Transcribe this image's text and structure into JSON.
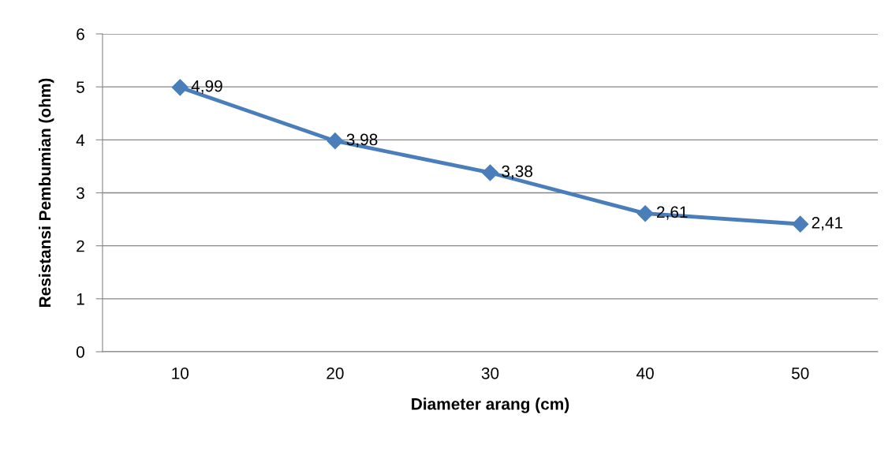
{
  "chart_data": {
    "type": "line",
    "xlabel": "Diameter arang (cm)",
    "ylabel": "Resistansi Pembumian (ohm)",
    "categories": [
      "10",
      "20",
      "30",
      "40",
      "50"
    ],
    "series": [
      {
        "color": "#4a7ebb",
        "values": [
          4.99,
          3.98,
          3.38,
          2.61,
          2.41
        ],
        "value_labels": [
          "4,99",
          "3,98",
          "3,38",
          "2,61",
          "2,41"
        ]
      }
    ],
    "ylim": [
      0,
      6
    ],
    "yticks": [
      0,
      1,
      2,
      3,
      4,
      5,
      6
    ],
    "grid": "y",
    "marker": "diamond",
    "line_style": "solid"
  }
}
